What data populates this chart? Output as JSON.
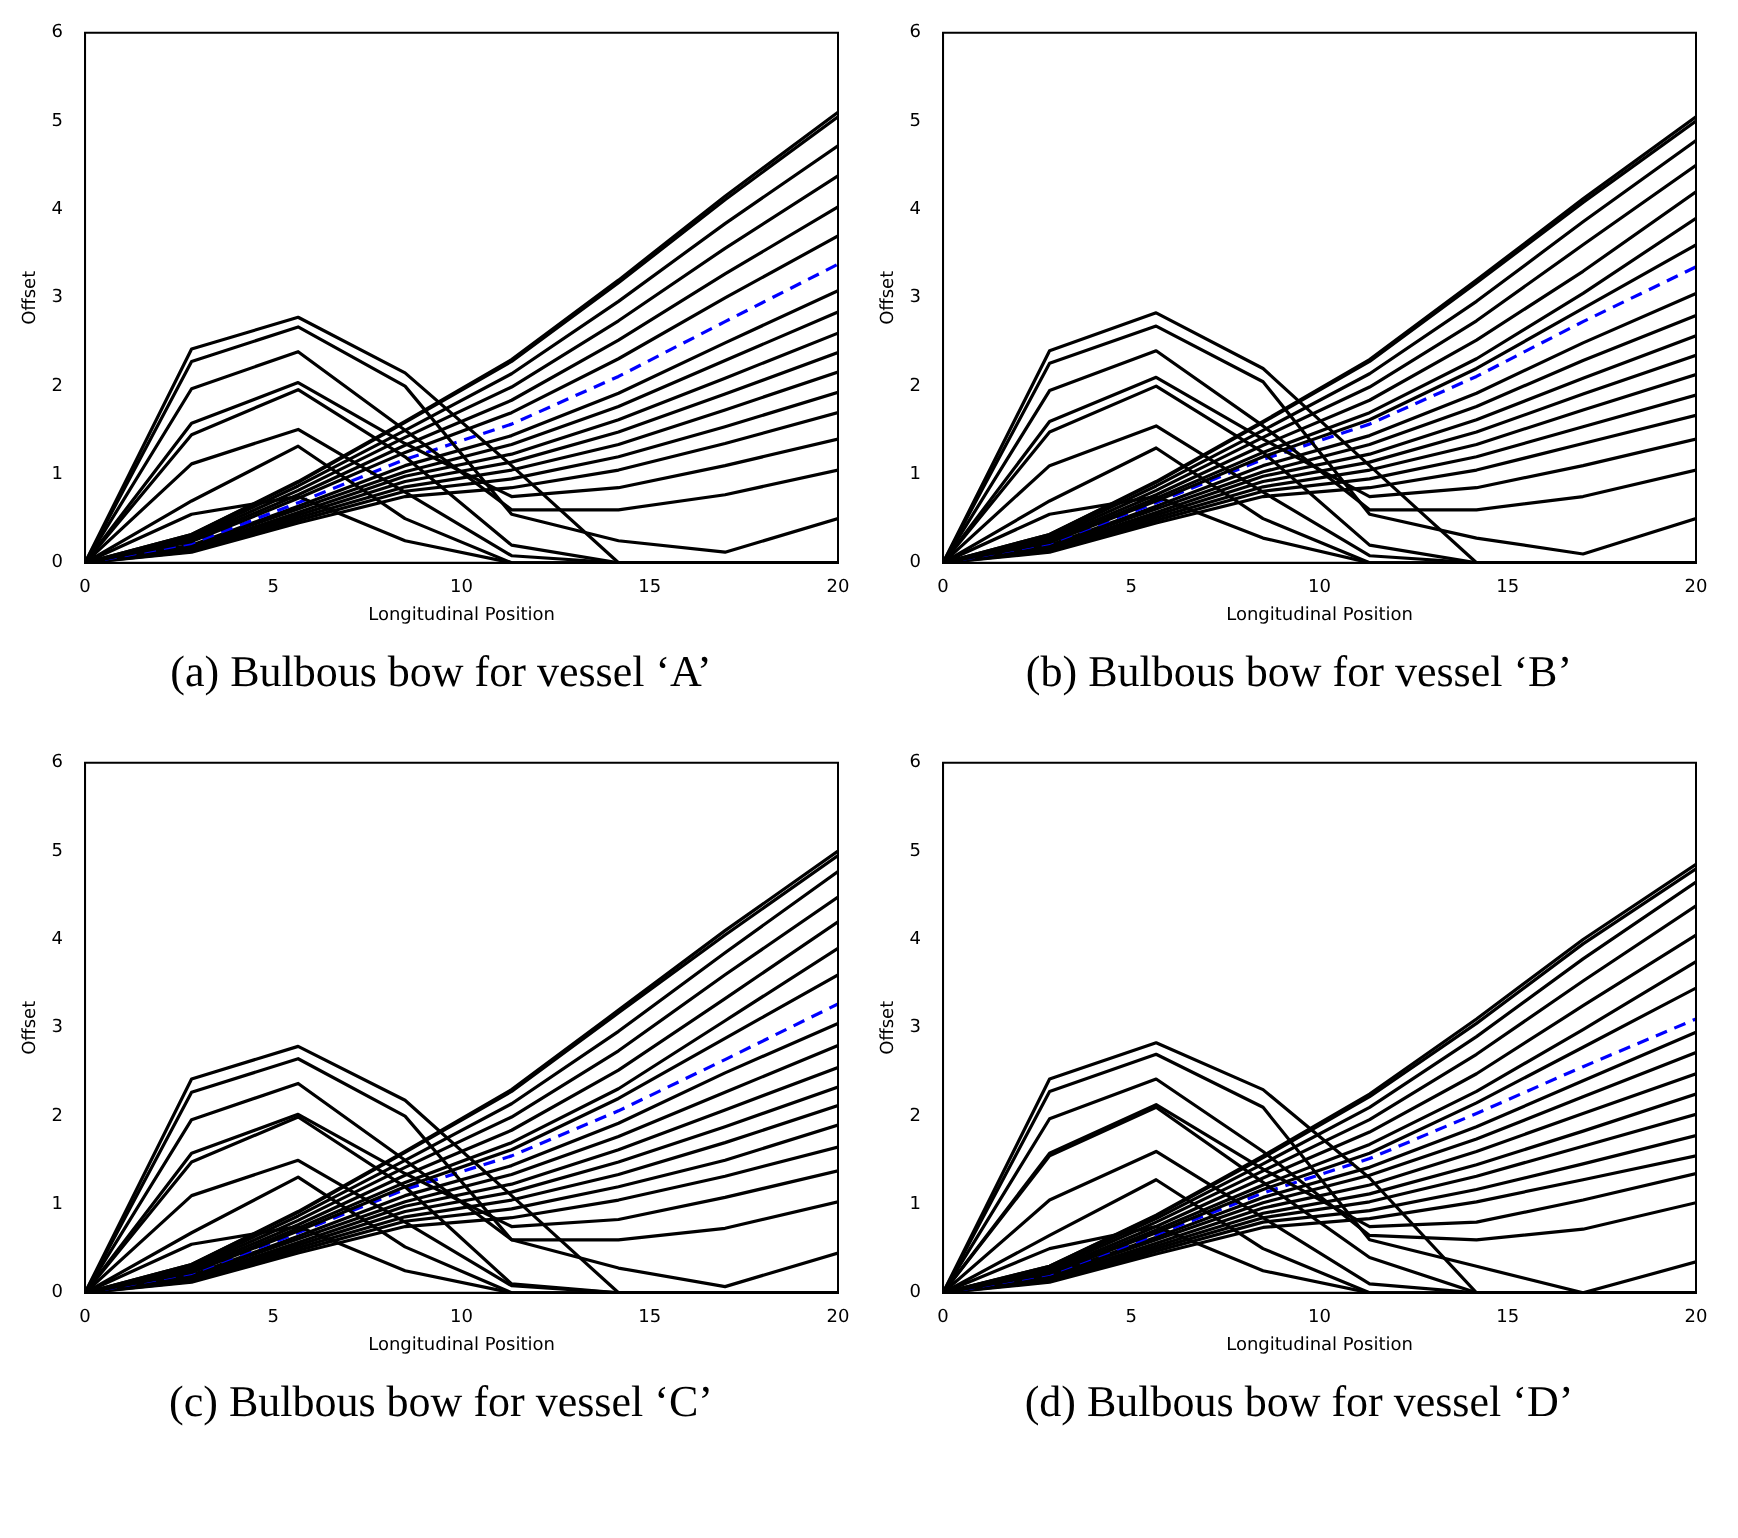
{
  "chart_data": [
    {
      "type": "line",
      "title": "(a) Bulbous bow for vessel ‘A’",
      "xlabel": "Longitudinal Position",
      "ylabel": "Offset",
      "x": [
        0,
        2.83,
        5.66,
        8.5,
        11.33,
        14.17,
        17,
        20
      ],
      "xlim": [
        0,
        20
      ],
      "xticks": [
        0,
        5,
        10,
        15,
        20
      ],
      "ylim": [
        0,
        6
      ],
      "yticks": [
        0,
        1,
        2,
        3,
        4,
        5,
        6
      ],
      "grid": false,
      "line_style": "solid",
      "series": [
        {
          "color": "#000000",
          "values": [
            0,
            2.42,
            2.78,
            2.15,
            1.1,
            0,
            0,
            0
          ]
        },
        {
          "color": "#000000",
          "values": [
            0,
            2.28,
            2.67,
            2.0,
            0.55,
            0.25,
            0.12,
            0.5
          ]
        },
        {
          "color": "#000000",
          "values": [
            0,
            1.97,
            2.39,
            1.5,
            0.6,
            0.6,
            0.77,
            1.05
          ]
        },
        {
          "color": "#000000",
          "values": [
            0,
            1.58,
            2.04,
            1.35,
            0.75,
            0.85,
            1.1,
            1.4
          ]
        },
        {
          "color": "#000000",
          "values": [
            0,
            1.45,
            1.96,
            1.2,
            0.2,
            0,
            0,
            0
          ]
        },
        {
          "color": "#000000",
          "values": [
            0,
            1.12,
            1.51,
            0.8,
            0.08,
            0,
            0,
            0
          ]
        },
        {
          "color": "#000000",
          "values": [
            0,
            0.7,
            1.32,
            0.5,
            0,
            0,
            0,
            0
          ]
        },
        {
          "color": "#000000",
          "values": [
            0,
            0.55,
            0.75,
            0.25,
            0,
            0,
            0,
            0
          ]
        },
        {
          "color": "#000000",
          "values": [
            0,
            0.32,
            0.92,
            1.6,
            2.3,
            3.2,
            4.15,
            5.1
          ]
        },
        {
          "color": "#000000",
          "values": [
            0,
            0.32,
            0.91,
            1.59,
            2.28,
            3.17,
            4.11,
            5.05
          ]
        },
        {
          "color": "#000000",
          "values": [
            0,
            0.3,
            0.87,
            1.5,
            2.14,
            2.96,
            3.84,
            4.72
          ]
        },
        {
          "color": "#000000",
          "values": [
            0,
            0.28,
            0.82,
            1.42,
            1.99,
            2.74,
            3.56,
            4.38
          ]
        },
        {
          "color": "#000000",
          "values": [
            0,
            0.26,
            0.77,
            1.33,
            1.84,
            2.52,
            3.27,
            4.03
          ]
        },
        {
          "color": "#000000",
          "values": [
            0,
            0.24,
            0.73,
            1.25,
            1.7,
            2.31,
            3.0,
            3.7
          ]
        },
        {
          "color": "#0000ff",
          "line_style": "dashed",
          "values": [
            0,
            0.22,
            0.68,
            1.17,
            1.57,
            2.11,
            2.73,
            3.38
          ]
        },
        {
          "color": "#000000",
          "values": [
            0,
            0.2,
            0.64,
            1.1,
            1.44,
            1.92,
            2.49,
            3.08
          ]
        },
        {
          "color": "#000000",
          "values": [
            0,
            0.19,
            0.61,
            1.03,
            1.34,
            1.77,
            2.29,
            2.84
          ]
        },
        {
          "color": "#000000",
          "values": [
            0,
            0.17,
            0.57,
            0.98,
            1.23,
            1.62,
            2.09,
            2.6
          ]
        },
        {
          "color": "#000000",
          "values": [
            0,
            0.16,
            0.54,
            0.92,
            1.14,
            1.48,
            1.91,
            2.38
          ]
        },
        {
          "color": "#000000",
          "values": [
            0,
            0.15,
            0.51,
            0.86,
            1.05,
            1.34,
            1.73,
            2.16
          ]
        },
        {
          "color": "#000000",
          "values": [
            0,
            0.13,
            0.48,
            0.81,
            0.95,
            1.2,
            1.54,
            1.93
          ]
        },
        {
          "color": "#000000",
          "values": [
            0,
            0.12,
            0.45,
            0.75,
            0.85,
            1.05,
            1.35,
            1.7
          ]
        }
      ]
    },
    {
      "type": "line",
      "title": "(b) Bulbous bow for vessel ‘B’",
      "xlabel": "Longitudinal Position",
      "ylabel": "Offset",
      "x": [
        0,
        2.83,
        5.66,
        8.5,
        11.33,
        14.17,
        17,
        20
      ],
      "xlim": [
        0,
        20
      ],
      "xticks": [
        0,
        5,
        10,
        15,
        20
      ],
      "ylim": [
        0,
        6
      ],
      "yticks": [
        0,
        1,
        2,
        3,
        4,
        5,
        6
      ],
      "grid": false,
      "line_style": "solid",
      "series": [
        {
          "color": "#000000",
          "values": [
            0,
            2.4,
            2.83,
            2.2,
            1.1,
            0,
            0,
            0
          ]
        },
        {
          "color": "#000000",
          "values": [
            0,
            2.26,
            2.68,
            2.05,
            0.55,
            0.28,
            0.1,
            0.5
          ]
        },
        {
          "color": "#000000",
          "values": [
            0,
            1.95,
            2.4,
            1.55,
            0.6,
            0.6,
            0.75,
            1.05
          ]
        },
        {
          "color": "#000000",
          "values": [
            0,
            1.6,
            2.1,
            1.4,
            0.75,
            0.85,
            1.1,
            1.4
          ]
        },
        {
          "color": "#000000",
          "values": [
            0,
            1.48,
            2.0,
            1.25,
            0.2,
            0,
            0,
            0
          ]
        },
        {
          "color": "#000000",
          "values": [
            0,
            1.1,
            1.55,
            0.8,
            0.08,
            0,
            0,
            0
          ]
        },
        {
          "color": "#000000",
          "values": [
            0,
            0.7,
            1.3,
            0.5,
            0,
            0,
            0,
            0
          ]
        },
        {
          "color": "#000000",
          "values": [
            0,
            0.55,
            0.75,
            0.28,
            0,
            0,
            0,
            0
          ]
        },
        {
          "color": "#000000",
          "values": [
            0,
            0.32,
            0.92,
            1.6,
            2.3,
            3.2,
            4.12,
            5.05
          ]
        },
        {
          "color": "#000000",
          "values": [
            0,
            0.32,
            0.91,
            1.59,
            2.28,
            3.17,
            4.08,
            5.0
          ]
        },
        {
          "color": "#000000",
          "values": [
            0,
            0.3,
            0.87,
            1.5,
            2.14,
            2.96,
            3.86,
            4.78
          ]
        },
        {
          "color": "#000000",
          "values": [
            0,
            0.28,
            0.82,
            1.42,
            1.99,
            2.74,
            3.6,
            4.5
          ]
        },
        {
          "color": "#000000",
          "values": [
            0,
            0.26,
            0.77,
            1.33,
            1.84,
            2.52,
            3.3,
            4.2
          ]
        },
        {
          "color": "#000000",
          "values": [
            0,
            0.24,
            0.73,
            1.25,
            1.7,
            2.31,
            3.05,
            3.9
          ]
        },
        {
          "color": "#000000",
          "values": [
            0,
            0.23,
            0.7,
            1.2,
            1.62,
            2.2,
            2.88,
            3.6
          ]
        },
        {
          "color": "#0000ff",
          "line_style": "dashed",
          "values": [
            0,
            0.22,
            0.68,
            1.17,
            1.57,
            2.11,
            2.73,
            3.35
          ]
        },
        {
          "color": "#000000",
          "values": [
            0,
            0.2,
            0.64,
            1.1,
            1.44,
            1.92,
            2.49,
            3.05
          ]
        },
        {
          "color": "#000000",
          "values": [
            0,
            0.19,
            0.61,
            1.03,
            1.34,
            1.77,
            2.29,
            2.8
          ]
        },
        {
          "color": "#000000",
          "values": [
            0,
            0.17,
            0.57,
            0.98,
            1.23,
            1.62,
            2.09,
            2.57
          ]
        },
        {
          "color": "#000000",
          "values": [
            0,
            0.16,
            0.54,
            0.92,
            1.14,
            1.48,
            1.91,
            2.35
          ]
        },
        {
          "color": "#000000",
          "values": [
            0,
            0.15,
            0.51,
            0.86,
            1.05,
            1.34,
            1.73,
            2.13
          ]
        },
        {
          "color": "#000000",
          "values": [
            0,
            0.13,
            0.48,
            0.81,
            0.95,
            1.2,
            1.54,
            1.9
          ]
        },
        {
          "color": "#000000",
          "values": [
            0,
            0.12,
            0.45,
            0.75,
            0.85,
            1.05,
            1.35,
            1.67
          ]
        }
      ]
    },
    {
      "type": "line",
      "title": "(c) Bulbous bow for vessel ‘C’",
      "xlabel": "Longitudinal Position",
      "ylabel": "Offset",
      "x": [
        0,
        2.83,
        5.66,
        8.5,
        11.33,
        14.17,
        17,
        20
      ],
      "xlim": [
        0,
        20
      ],
      "xticks": [
        0,
        5,
        10,
        15,
        20
      ],
      "ylim": [
        0,
        6
      ],
      "yticks": [
        0,
        1,
        2,
        3,
        4,
        5,
        6
      ],
      "grid": false,
      "line_style": "solid",
      "series": [
        {
          "color": "#000000",
          "values": [
            0,
            2.42,
            2.79,
            2.18,
            1.1,
            0,
            0,
            0
          ]
        },
        {
          "color": "#000000",
          "values": [
            0,
            2.27,
            2.65,
            2.0,
            0.6,
            0.28,
            0.07,
            0.45
          ]
        },
        {
          "color": "#000000",
          "values": [
            0,
            1.96,
            2.37,
            1.5,
            0.6,
            0.6,
            0.73,
            1.03
          ]
        },
        {
          "color": "#000000",
          "values": [
            0,
            1.58,
            2.02,
            1.35,
            0.75,
            0.83,
            1.08,
            1.38
          ]
        },
        {
          "color": "#000000",
          "values": [
            0,
            1.48,
            1.99,
            1.2,
            0.1,
            0,
            0,
            0
          ]
        },
        {
          "color": "#000000",
          "values": [
            0,
            1.1,
            1.5,
            0.8,
            0.08,
            0,
            0,
            0
          ]
        },
        {
          "color": "#000000",
          "values": [
            0,
            0.68,
            1.31,
            0.52,
            0,
            0,
            0,
            0
          ]
        },
        {
          "color": "#000000",
          "values": [
            0,
            0.55,
            0.75,
            0.25,
            0,
            0,
            0,
            0
          ]
        },
        {
          "color": "#000000",
          "values": [
            0,
            0.32,
            0.92,
            1.6,
            2.3,
            3.2,
            4.1,
            5.0
          ]
        },
        {
          "color": "#000000",
          "values": [
            0,
            0.32,
            0.91,
            1.59,
            2.28,
            3.17,
            4.05,
            4.95
          ]
        },
        {
          "color": "#000000",
          "values": [
            0,
            0.3,
            0.87,
            1.5,
            2.14,
            2.96,
            3.85,
            4.77
          ]
        },
        {
          "color": "#000000",
          "values": [
            0,
            0.28,
            0.82,
            1.42,
            1.99,
            2.74,
            3.6,
            4.48
          ]
        },
        {
          "color": "#000000",
          "values": [
            0,
            0.26,
            0.77,
            1.33,
            1.84,
            2.52,
            3.33,
            4.2
          ]
        },
        {
          "color": "#000000",
          "values": [
            0,
            0.24,
            0.73,
            1.25,
            1.7,
            2.31,
            3.08,
            3.9
          ]
        },
        {
          "color": "#000000",
          "values": [
            0,
            0.23,
            0.7,
            1.2,
            1.62,
            2.2,
            2.88,
            3.6
          ]
        },
        {
          "color": "#0000ff",
          "line_style": "dashed",
          "values": [
            0,
            0.22,
            0.68,
            1.17,
            1.55,
            2.06,
            2.64,
            3.27
          ]
        },
        {
          "color": "#000000",
          "values": [
            0,
            0.2,
            0.64,
            1.1,
            1.44,
            1.92,
            2.49,
            3.05
          ]
        },
        {
          "color": "#000000",
          "values": [
            0,
            0.19,
            0.61,
            1.03,
            1.34,
            1.77,
            2.27,
            2.8
          ]
        },
        {
          "color": "#000000",
          "values": [
            0,
            0.17,
            0.57,
            0.98,
            1.23,
            1.62,
            2.07,
            2.55
          ]
        },
        {
          "color": "#000000",
          "values": [
            0,
            0.16,
            0.54,
            0.92,
            1.14,
            1.48,
            1.88,
            2.33
          ]
        },
        {
          "color": "#000000",
          "values": [
            0,
            0.15,
            0.51,
            0.86,
            1.05,
            1.34,
            1.7,
            2.12
          ]
        },
        {
          "color": "#000000",
          "values": [
            0,
            0.13,
            0.48,
            0.81,
            0.95,
            1.2,
            1.5,
            1.9
          ]
        },
        {
          "color": "#000000",
          "values": [
            0,
            0.12,
            0.45,
            0.75,
            0.85,
            1.05,
            1.32,
            1.65
          ]
        }
      ]
    },
    {
      "type": "line",
      "title": "(d) Bulbous bow for vessel ‘D’",
      "xlabel": "Longitudinal Position",
      "ylabel": "Offset",
      "x": [
        0,
        2.83,
        5.66,
        8.5,
        11.33,
        14.17,
        17,
        20
      ],
      "xlim": [
        0,
        20
      ],
      "xticks": [
        0,
        5,
        10,
        15,
        20
      ],
      "ylim": [
        0,
        6
      ],
      "yticks": [
        0,
        1,
        2,
        3,
        4,
        5,
        6
      ],
      "grid": false,
      "line_style": "solid",
      "series": [
        {
          "color": "#000000",
          "values": [
            0,
            2.42,
            2.83,
            2.3,
            1.3,
            0,
            0,
            0
          ]
        },
        {
          "color": "#000000",
          "values": [
            0,
            2.28,
            2.7,
            2.1,
            0.6,
            0.3,
            0,
            0.35
          ]
        },
        {
          "color": "#000000",
          "values": [
            0,
            1.97,
            2.42,
            1.6,
            0.65,
            0.6,
            0.72,
            1.02
          ]
        },
        {
          "color": "#000000",
          "values": [
            0,
            1.58,
            2.13,
            1.4,
            0.75,
            0.8,
            1.05,
            1.35
          ]
        },
        {
          "color": "#000000",
          "values": [
            0,
            1.55,
            2.1,
            1.25,
            0.4,
            0,
            0,
            0
          ]
        },
        {
          "color": "#000000",
          "values": [
            0,
            1.05,
            1.6,
            0.85,
            0.1,
            0,
            0,
            0
          ]
        },
        {
          "color": "#000000",
          "values": [
            0,
            0.65,
            1.28,
            0.5,
            0,
            0,
            0,
            0
          ]
        },
        {
          "color": "#000000",
          "values": [
            0,
            0.5,
            0.75,
            0.25,
            0,
            0,
            0,
            0
          ]
        },
        {
          "color": "#000000",
          "values": [
            0,
            0.3,
            0.88,
            1.55,
            2.25,
            3.1,
            4.0,
            4.85
          ]
        },
        {
          "color": "#000000",
          "values": [
            0,
            0.3,
            0.87,
            1.53,
            2.22,
            3.05,
            3.95,
            4.8
          ]
        },
        {
          "color": "#000000",
          "values": [
            0,
            0.29,
            0.84,
            1.46,
            2.1,
            2.9,
            3.78,
            4.65
          ]
        },
        {
          "color": "#000000",
          "values": [
            0,
            0.27,
            0.8,
            1.38,
            1.96,
            2.7,
            3.53,
            4.38
          ]
        },
        {
          "color": "#000000",
          "values": [
            0,
            0.25,
            0.75,
            1.3,
            1.82,
            2.48,
            3.25,
            4.05
          ]
        },
        {
          "color": "#000000",
          "values": [
            0,
            0.23,
            0.71,
            1.22,
            1.68,
            2.28,
            2.98,
            3.75
          ]
        },
        {
          "color": "#000000",
          "values": [
            0,
            0.22,
            0.68,
            1.17,
            1.58,
            2.15,
            2.78,
            3.45
          ]
        },
        {
          "color": "#0000ff",
          "line_style": "dashed",
          "values": [
            0,
            0.21,
            0.66,
            1.13,
            1.52,
            2.03,
            2.56,
            3.1
          ]
        },
        {
          "color": "#000000",
          "values": [
            0,
            0.2,
            0.63,
            1.08,
            1.42,
            1.88,
            2.4,
            2.95
          ]
        },
        {
          "color": "#000000",
          "values": [
            0,
            0.19,
            0.6,
            1.02,
            1.33,
            1.74,
            2.22,
            2.72
          ]
        },
        {
          "color": "#000000",
          "values": [
            0,
            0.17,
            0.56,
            0.96,
            1.22,
            1.6,
            2.03,
            2.48
          ]
        },
        {
          "color": "#000000",
          "values": [
            0,
            0.16,
            0.53,
            0.9,
            1.12,
            1.45,
            1.83,
            2.25
          ]
        },
        {
          "color": "#000000",
          "values": [
            0,
            0.15,
            0.5,
            0.85,
            1.03,
            1.32,
            1.66,
            2.02
          ]
        },
        {
          "color": "#000000",
          "values": [
            0,
            0.13,
            0.47,
            0.8,
            0.93,
            1.17,
            1.46,
            1.78
          ]
        },
        {
          "color": "#000000",
          "values": [
            0,
            0.12,
            0.44,
            0.74,
            0.84,
            1.03,
            1.28,
            1.55
          ]
        }
      ]
    }
  ]
}
